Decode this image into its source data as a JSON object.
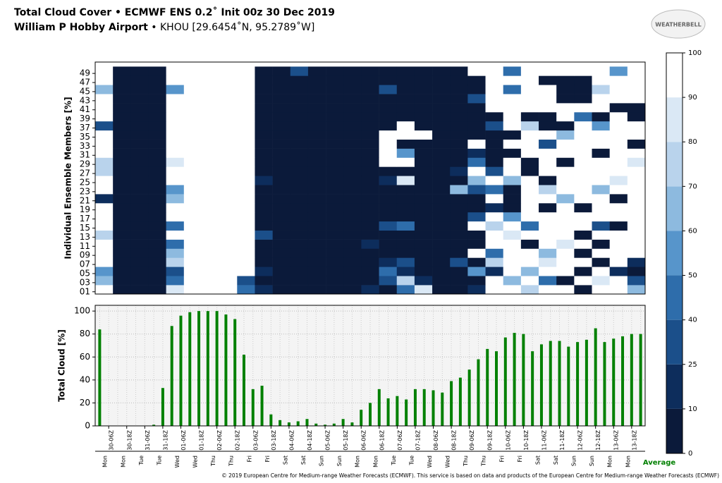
{
  "header": {
    "title": "Total Cloud Cover  • ECMWF ENS 0.2˚ Init 00z 30 Dec 2019",
    "location": "William P Hobby Airport",
    "station": " • KHOU [29.6454˚N, 95.2789˚W]",
    "logo": "WEATHERBELL"
  },
  "footer": "© 2019 European Centre for Medium-range Weather Forecasts (ECMWF). This service is based on data and products of the European Centre for Medium-range Weather Forecasts (ECMWF)",
  "chart_data": [
    {
      "type": "heatmap",
      "ylabel": "Individual Ensemble Members [%]",
      "categories": [
        "01",
        "03",
        "05",
        "07",
        "09",
        "11",
        "13",
        "15",
        "17",
        "19",
        "21",
        "23",
        "25",
        "27",
        "29",
        "31",
        "33",
        "35",
        "37",
        "39",
        "41",
        "43",
        "45",
        "47",
        "49"
      ],
      "levels": [
        0,
        10,
        25,
        40,
        50,
        60,
        70,
        80,
        90,
        100
      ],
      "colors": [
        "#0b1a3a",
        "#0d2d5c",
        "#1b4f8a",
        "#2e6dab",
        "#5795cb",
        "#8dbadf",
        "#b9d3ec",
        "#dae8f5",
        "#ffffff"
      ],
      "z": [
        [
          95,
          0,
          0,
          0,
          80,
          100,
          100,
          100,
          40,
          10,
          0,
          0,
          0,
          0,
          0,
          20,
          5,
          40,
          80,
          0,
          0,
          10,
          90,
          100,
          70,
          90,
          100,
          0,
          100,
          90,
          60
        ],
        [
          60,
          0,
          0,
          0,
          40,
          100,
          100,
          100,
          30,
          5,
          0,
          0,
          0,
          0,
          0,
          0,
          30,
          70,
          20,
          0,
          0,
          5,
          95,
          60,
          100,
          40,
          0,
          100,
          85,
          100,
          30
        ],
        [
          50,
          0,
          0,
          0,
          30,
          100,
          100,
          100,
          95,
          20,
          0,
          0,
          0,
          0,
          0,
          0,
          40,
          10,
          0,
          0,
          0,
          50,
          20,
          100,
          60,
          100,
          90,
          0,
          100,
          20,
          5
        ],
        [
          100,
          0,
          0,
          0,
          70,
          100,
          100,
          100,
          100,
          0,
          0,
          0,
          0,
          0,
          0,
          0,
          10,
          30,
          0,
          0,
          30,
          0,
          70,
          100,
          90,
          80,
          100,
          100,
          0,
          100,
          10
        ],
        [
          90,
          0,
          0,
          0,
          60,
          100,
          100,
          100,
          100,
          5,
          0,
          0,
          0,
          0,
          0,
          0,
          0,
          0,
          0,
          0,
          5,
          100,
          40,
          100,
          100,
          60,
          100,
          0,
          100,
          100,
          90
        ],
        [
          100,
          0,
          0,
          0,
          40,
          100,
          100,
          100,
          90,
          0,
          0,
          0,
          0,
          0,
          0,
          20,
          0,
          0,
          0,
          0,
          0,
          0,
          100,
          100,
          0,
          100,
          80,
          100,
          0,
          100,
          100
        ],
        [
          70,
          0,
          0,
          0,
          100,
          100,
          100,
          100,
          100,
          30,
          0,
          0,
          0,
          0,
          0,
          0,
          0,
          0,
          0,
          5,
          0,
          0,
          100,
          80,
          100,
          100,
          100,
          0,
          100,
          100,
          100
        ],
        [
          100,
          0,
          0,
          0,
          40,
          100,
          100,
          100,
          100,
          0,
          0,
          0,
          0,
          0,
          0,
          0,
          30,
          40,
          0,
          0,
          0,
          100,
          70,
          100,
          40,
          100,
          90,
          100,
          30,
          0,
          100
        ],
        [
          100,
          0,
          0,
          0,
          90,
          90,
          100,
          100,
          100,
          0,
          0,
          0,
          0,
          0,
          0,
          0,
          0,
          0,
          0,
          0,
          0,
          30,
          90,
          50,
          100,
          90,
          100,
          100,
          100,
          100,
          100
        ],
        [
          100,
          0,
          0,
          0,
          100,
          100,
          100,
          100,
          100,
          0,
          0,
          0,
          0,
          0,
          0,
          0,
          0,
          0,
          0,
          0,
          0,
          0,
          10,
          0,
          100,
          0,
          100,
          0,
          100,
          100,
          100
        ],
        [
          10,
          0,
          0,
          0,
          60,
          100,
          100,
          100,
          100,
          0,
          0,
          0,
          0,
          0,
          0,
          5,
          0,
          0,
          0,
          0,
          0,
          0,
          100,
          0,
          100,
          100,
          60,
          100,
          100,
          0,
          100
        ],
        [
          100,
          0,
          0,
          0,
          55,
          100,
          100,
          100,
          100,
          0,
          0,
          0,
          0,
          0,
          0,
          0,
          0,
          0,
          0,
          5,
          60,
          30,
          40,
          0,
          100,
          70,
          100,
          100,
          60,
          100,
          100
        ],
        [
          100,
          0,
          0,
          0,
          100,
          100,
          100,
          100,
          100,
          20,
          0,
          0,
          0,
          0,
          0,
          0,
          20,
          80,
          0,
          0,
          0,
          60,
          100,
          60,
          100,
          0,
          100,
          100,
          100,
          80,
          100
        ],
        [
          70,
          0,
          0,
          0,
          90,
          100,
          100,
          100,
          100,
          0,
          0,
          0,
          0,
          0,
          0,
          0,
          0,
          0,
          0,
          0,
          20,
          100,
          30,
          100,
          0,
          100,
          100,
          100,
          100,
          100,
          100
        ],
        [
          70,
          0,
          0,
          0,
          80,
          100,
          100,
          100,
          100,
          0,
          0,
          0,
          0,
          0,
          0,
          0,
          100,
          100,
          0,
          0,
          0,
          40,
          0,
          100,
          0,
          100,
          0,
          100,
          100,
          100,
          80
        ],
        [
          100,
          0,
          0,
          0,
          100,
          100,
          100,
          100,
          100,
          0,
          0,
          0,
          0,
          0,
          0,
          0,
          100,
          50,
          0,
          0,
          0,
          20,
          0,
          0,
          90,
          100,
          100,
          100,
          0,
          100,
          100
        ],
        [
          100,
          0,
          0,
          0,
          100,
          100,
          95,
          100,
          100,
          0,
          0,
          0,
          0,
          0,
          0,
          0,
          100,
          0,
          0,
          0,
          0,
          100,
          0,
          100,
          100,
          30,
          100,
          100,
          100,
          100,
          0
        ],
        [
          100,
          0,
          0,
          0,
          100,
          100,
          100,
          100,
          100,
          0,
          0,
          0,
          0,
          0,
          0,
          0,
          100,
          100,
          100,
          0,
          0,
          0,
          0,
          0,
          100,
          100,
          60,
          100,
          100,
          100,
          100
        ],
        [
          30,
          0,
          0,
          0,
          100,
          100,
          100,
          100,
          100,
          0,
          0,
          0,
          0,
          0,
          0,
          0,
          0,
          100,
          0,
          0,
          0,
          0,
          30,
          100,
          70,
          0,
          0,
          100,
          50,
          100,
          100
        ],
        [
          100,
          0,
          0,
          0,
          100,
          100,
          100,
          100,
          100,
          0,
          0,
          0,
          0,
          0,
          0,
          0,
          0,
          0,
          0,
          0,
          0,
          0,
          0,
          100,
          0,
          0,
          100,
          40,
          0,
          100,
          0
        ],
        [
          100,
          0,
          0,
          0,
          100,
          100,
          100,
          100,
          100,
          0,
          0,
          0,
          0,
          0,
          0,
          0,
          0,
          0,
          0,
          0,
          0,
          0,
          100,
          100,
          100,
          90,
          100,
          100,
          100,
          0,
          0
        ],
        [
          90,
          0,
          0,
          0,
          100,
          100,
          100,
          95,
          100,
          0,
          0,
          0,
          0,
          0,
          0,
          0,
          0,
          0,
          0,
          0,
          0,
          30,
          100,
          100,
          100,
          100,
          0,
          0,
          100,
          100,
          100
        ],
        [
          60,
          0,
          0,
          0,
          50,
          100,
          100,
          100,
          100,
          0,
          0,
          0,
          0,
          0,
          0,
          0,
          30,
          0,
          0,
          0,
          0,
          0,
          100,
          40,
          100,
          100,
          0,
          0,
          70,
          100,
          100
        ],
        [
          100,
          0,
          0,
          0,
          100,
          100,
          100,
          100,
          100,
          0,
          0,
          0,
          0,
          0,
          0,
          0,
          0,
          0,
          0,
          0,
          0,
          0,
          100,
          100,
          100,
          0,
          0,
          0,
          100,
          100,
          100
        ],
        [
          100,
          0,
          0,
          0,
          95,
          100,
          100,
          100,
          100,
          0,
          0,
          30,
          0,
          0,
          0,
          0,
          0,
          0,
          0,
          0,
          0,
          100,
          100,
          40,
          100,
          100,
          100,
          100,
          100,
          50,
          100
        ]
      ]
    },
    {
      "type": "bar",
      "ylabel": "Total Cloud [%]",
      "xlabel": "Average",
      "color": "#008000",
      "grid": true,
      "ylim": [
        0,
        105
      ],
      "yticks": [
        0,
        20,
        40,
        60,
        80,
        100
      ],
      "categories": [
        null,
        "30-06Z",
        null,
        "30-18Z",
        null,
        "31-06Z",
        null,
        "31-18Z",
        null,
        "01-06Z",
        null,
        "01-18Z",
        null,
        "02-06Z",
        null,
        "02-18Z",
        null,
        "03-06Z",
        null,
        "03-18Z",
        null,
        "04-06Z",
        null,
        "04-18Z",
        null,
        "05-06Z",
        null,
        "05-18Z",
        null,
        "06-06Z",
        null,
        "06-18Z",
        null,
        "07-06Z",
        null,
        "07-18Z",
        null,
        "08-06Z",
        null,
        "08-18Z",
        null,
        "09-06Z",
        null,
        "09-18Z",
        null,
        "10-06Z",
        null,
        "10-18Z",
        null,
        "11-06Z",
        null,
        "11-18Z",
        null,
        "12-06Z",
        null,
        "12-18Z",
        null,
        "13-06Z",
        null,
        "13-18Z",
        null
      ],
      "day_labels": [
        null,
        "Mon",
        null,
        "Mon",
        null,
        "Tue",
        null,
        "Tue",
        null,
        "Wed",
        null,
        "Wed",
        null,
        "Thu",
        null,
        "Thu",
        null,
        "Fri",
        null,
        "Fri",
        null,
        "Sat",
        null,
        "Sat",
        null,
        "Sun",
        null,
        "Sun",
        null,
        "Mon",
        null,
        "Mon",
        null,
        "Tue",
        null,
        "Tue",
        null,
        "Wed",
        null,
        "Wed",
        null,
        "Thu",
        null,
        "Thu",
        null,
        "Fri",
        null,
        "Fri",
        null,
        "Sat",
        null,
        "Sat",
        null,
        "Sun",
        null,
        "Sun",
        null,
        "Mon",
        null,
        "Mon",
        null
      ],
      "values": [
        84,
        0,
        0,
        0,
        0,
        0,
        1,
        33,
        87,
        96,
        99,
        100,
        100,
        100,
        97,
        93,
        62,
        32,
        35,
        10,
        5,
        3,
        4,
        6,
        2,
        1,
        2,
        6,
        3,
        14,
        20,
        32,
        24,
        26,
        23,
        32,
        32,
        31,
        29,
        39,
        42,
        49,
        58,
        67,
        65,
        77,
        81,
        80,
        65,
        71,
        74,
        74,
        69,
        73,
        75,
        85,
        73,
        76,
        78,
        80,
        80
      ]
    }
  ]
}
